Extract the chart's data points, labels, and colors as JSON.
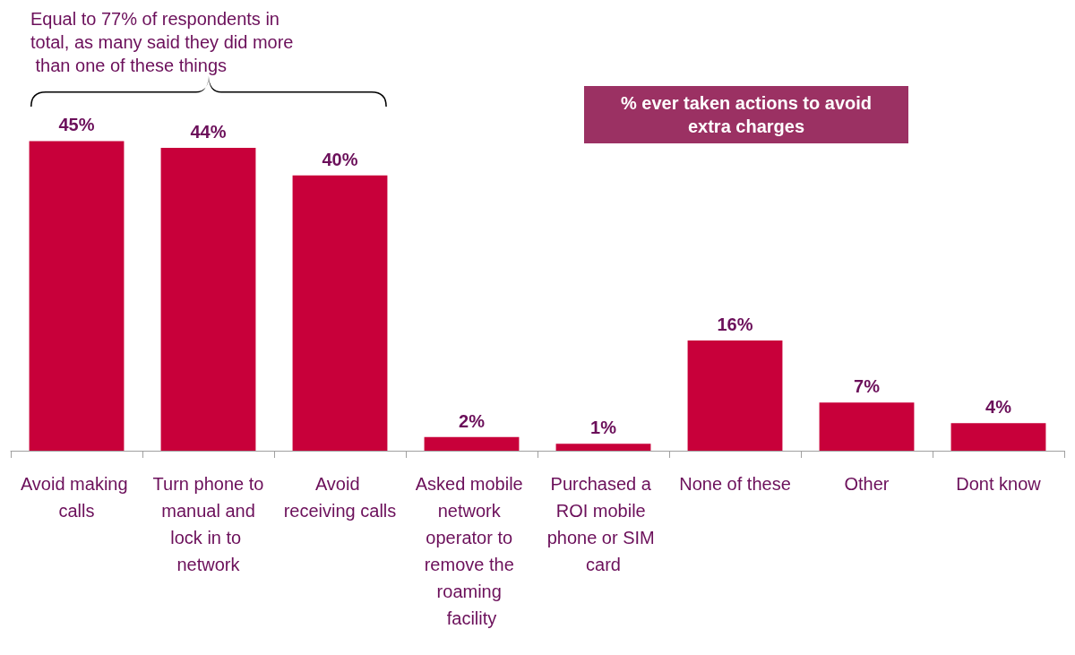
{
  "chart_data": {
    "type": "bar",
    "title": "% ever taken actions to avoid extra charges",
    "annotations": [
      "Equal to 77% of respondents in total, as many said they did more than one of these things"
    ],
    "categories": [
      "Avoid making calls",
      "Turn phone to manual and lock in to network",
      "Avoid receiving calls",
      "Asked mobile network operator to remove the roaming facility",
      "Purchased a ROI mobile phone or SIM card",
      "None of these",
      "Other",
      "Dont know"
    ],
    "values": [
      45,
      44,
      40,
      2,
      1,
      16,
      7,
      4
    ],
    "value_labels": [
      "45%",
      "44%",
      "40%",
      "2%",
      "1%",
      "16%",
      "7%",
      "4%"
    ],
    "color": "#c8003a"
  }
}
